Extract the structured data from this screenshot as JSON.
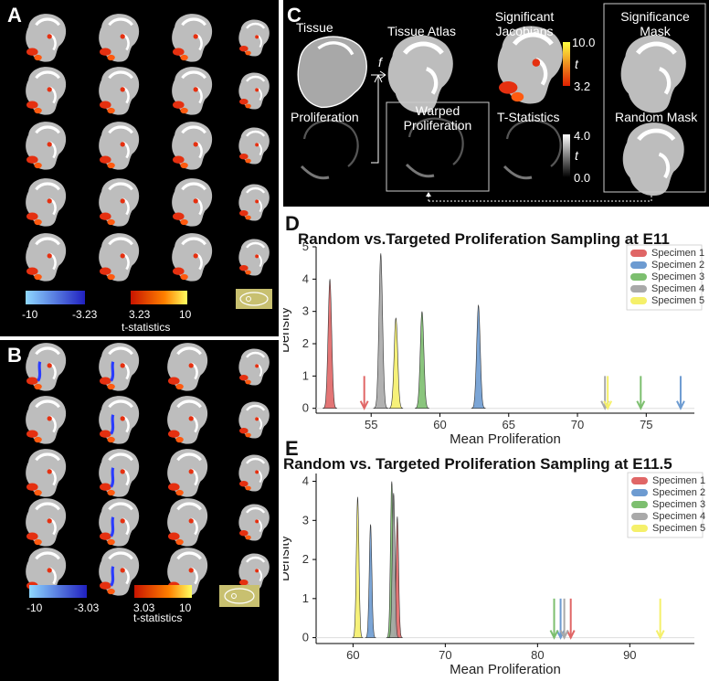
{
  "panels": {
    "a_label": "A",
    "b_label": "B",
    "c_label": "C",
    "d_label": "D",
    "e_label": "E"
  },
  "panel_a": {
    "cb_neg_min": "-10",
    "cb_neg_max": "-3.23",
    "cb_pos_min": "3.23",
    "cb_pos_max": "10",
    "cb_title": "t-statistics"
  },
  "panel_b": {
    "cb_neg_min": "-10",
    "cb_neg_max": "-3.03",
    "cb_pos_min": "3.03",
    "cb_pos_max": "10",
    "cb_title": "t-statistics"
  },
  "panel_c": {
    "tissue": "Tissue",
    "tissue_atlas": "Tissue Atlas",
    "significant_jacobians": "Significant Jacobians",
    "significance_mask": "Significance Mask",
    "proliferation": "Proliferation",
    "warped_proliferation": "Warped Proliferation",
    "t_statistics": "T-Statistics",
    "random_mask": "Random Mask",
    "f_label": "f",
    "t_label_1": "t",
    "t_label_2": "t",
    "cb1_max": "10.0",
    "cb1_min": "3.2",
    "cb2_max": "4.0",
    "cb2_min": "0.0",
    "colors": {
      "hot_top": "#ffff40",
      "hot_bottom": "#e02000"
    }
  },
  "chart_data": [
    {
      "type": "area",
      "title": "Random vs.Targeted Proliferation Sampling at E11",
      "xlabel": "Mean Proliferation",
      "ylabel": "Density",
      "xlim": [
        51,
        78.5
      ],
      "ylim": [
        -0.15,
        5
      ],
      "xticks": [
        55,
        60,
        65,
        70,
        75
      ],
      "yticks": [
        0,
        1,
        2,
        3,
        4,
        5
      ],
      "series": [
        {
          "name": "Specimen 1",
          "color": "#e06666",
          "peak_x": 52.0,
          "peak_y": 4.0,
          "sigma": 0.13,
          "arrow_x": 54.5
        },
        {
          "name": "Specimen 2",
          "color": "#6d9bd1",
          "peak_x": 62.8,
          "peak_y": 3.2,
          "sigma": 0.13,
          "arrow_x": 77.5
        },
        {
          "name": "Specimen 3",
          "color": "#7dbf6f",
          "peak_x": 58.7,
          "peak_y": 3.0,
          "sigma": 0.13,
          "arrow_x": 74.6
        },
        {
          "name": "Specimen 4",
          "color": "#a9a9a9",
          "peak_x": 55.7,
          "peak_y": 4.8,
          "sigma": 0.13,
          "arrow_x": 72.0
        },
        {
          "name": "Specimen 5",
          "color": "#f5f06a",
          "peak_x": 56.8,
          "peak_y": 2.8,
          "sigma": 0.13,
          "arrow_x": 72.2
        }
      ]
    },
    {
      "type": "area",
      "title": "Random vs. Targeted Proliferation Sampling at E11.5",
      "xlabel": "Mean Proliferation",
      "ylabel": "Density",
      "xlim": [
        56,
        97
      ],
      "ylim": [
        -0.15,
        4.2
      ],
      "xticks": [
        60,
        70,
        80,
        90
      ],
      "yticks": [
        0,
        1,
        2,
        3,
        4
      ],
      "series": [
        {
          "name": "Specimen 1",
          "color": "#e06666",
          "peak_x": 64.8,
          "peak_y": 3.1,
          "sigma": 0.14,
          "arrow_x": 83.6
        },
        {
          "name": "Specimen 2",
          "color": "#6d9bd1",
          "peak_x": 61.9,
          "peak_y": 2.9,
          "sigma": 0.14,
          "arrow_x": 82.5
        },
        {
          "name": "Specimen 3",
          "color": "#7dbf6f",
          "peak_x": 64.2,
          "peak_y": 4.0,
          "sigma": 0.14,
          "arrow_x": 81.8
        },
        {
          "name": "Specimen 4",
          "color": "#a9a9a9",
          "peak_x": 64.4,
          "peak_y": 3.7,
          "sigma": 0.14,
          "arrow_x": 82.9
        },
        {
          "name": "Specimen 5",
          "color": "#f5f06a",
          "peak_x": 60.5,
          "peak_y": 3.6,
          "sigma": 0.14,
          "arrow_x": 93.3
        }
      ]
    }
  ]
}
